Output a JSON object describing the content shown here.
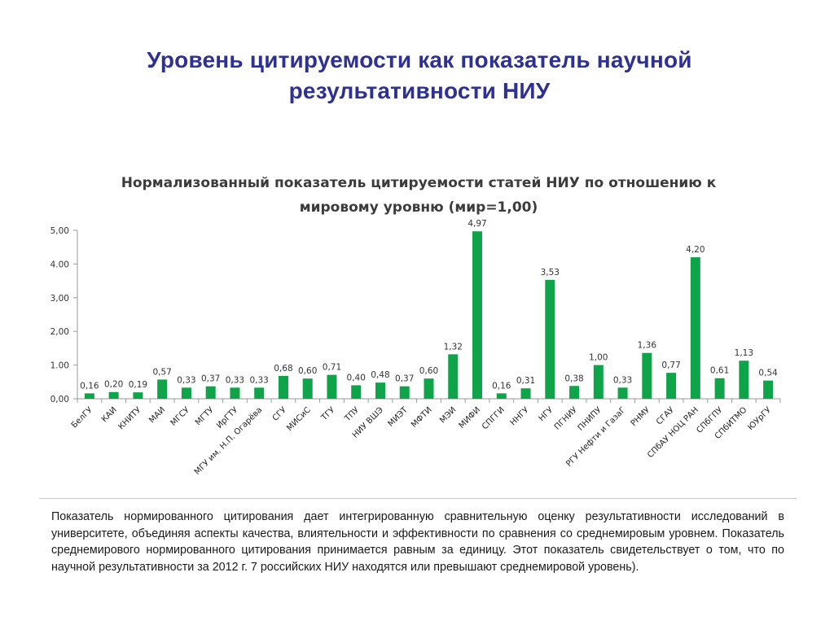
{
  "slide": {
    "title": "Уровень цитируемости как показатель научной результативности НИУ"
  },
  "chart_data": {
    "type": "bar",
    "title_lines": [
      "Нормализованный показатель цитируемости статей НИУ по отношению к",
      "мировому уровню (мир=1,00)"
    ],
    "categories": [
      "БелГУ",
      "КАИ",
      "КНИТУ",
      "МАИ",
      "МГСУ",
      "МГТУ",
      "ИрГТУ",
      "МГУ им. Н.П. Огарёва",
      "СГУ",
      "МИСиС",
      "ТГУ",
      "ТПУ",
      "НИУ ВШЭ",
      "МИЭТ",
      "МФТИ",
      "МЭИ",
      "МИФИ",
      "СПГГИ",
      "ННГУ",
      "НГУ",
      "ПГНИУ",
      "ПНИПУ",
      "РГУ Нефти и ГазаГ",
      "РНМУ",
      "СГАУ",
      "СПбАУ НОЦ РАН",
      "СПбГПУ",
      "СПбИТМО",
      "ЮУрГУ"
    ],
    "values": [
      0.16,
      0.2,
      0.19,
      0.57,
      0.33,
      0.37,
      0.33,
      0.33,
      0.68,
      0.6,
      0.71,
      0.4,
      0.48,
      0.37,
      0.6,
      1.32,
      4.97,
      0.16,
      0.31,
      3.53,
      0.38,
      1.0,
      0.33,
      1.36,
      0.77,
      4.2,
      0.61,
      1.13,
      0.54
    ],
    "value_labels": [
      "0,16",
      "0,20",
      "0,19",
      "0,57",
      "0,33",
      "0,37",
      "0,33",
      "0,33",
      "0,68",
      "0,60",
      "0,71",
      "0,40",
      "0,48",
      "0,37",
      "0,60",
      "1,32",
      "4,97",
      "0,16",
      "0,31",
      "3,53",
      "0,38",
      "1,00",
      "0,33",
      "1,36",
      "0,77",
      "4,20",
      "0,61",
      "1,13",
      "0,54"
    ],
    "y_ticks": [
      0,
      1,
      2,
      3,
      4,
      5
    ],
    "y_tick_labels": [
      "0,00",
      "1.00",
      "2,00",
      "3,00",
      "4.00",
      "5,00"
    ],
    "ylim": [
      0,
      5
    ],
    "grid": false,
    "legend": "none",
    "bar_color": "#0fa34a"
  },
  "description": {
    "text": "Показатель нормированного цитирования дает интегрированную сравнительную оценку результативности исследований в университете, объединяя аспекты качества, влиятельности и эффективности по сравнения со среднемировым уровнем. Показатель среднемирового нормированного цитирования принимается равным за единицу. Этот показатель свидетельствует о том, что по научной результативности за 2012 г. 7 российских НИУ находятся или превышают среднемировой уровень)."
  },
  "colors": {
    "title": "#2e3192",
    "bar": "#0fa34a",
    "axis": "#9a9a9a"
  }
}
